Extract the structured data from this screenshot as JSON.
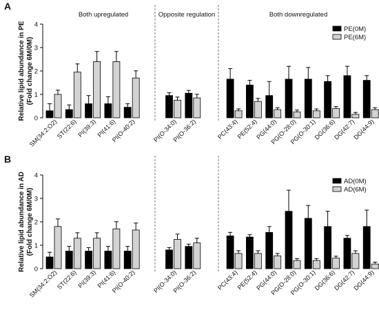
{
  "chart_data": [
    {
      "type": "bar",
      "panel_letter": "A",
      "ylabel_line1": "Relative lipid abundance in PE",
      "ylabel_line2": "(Fold change 6M/0M)",
      "ylim": [
        0,
        4
      ],
      "yticks": [
        "0",
        "1",
        "2",
        "3",
        "4"
      ],
      "group_labels": [
        "Both upregulated",
        "Opposite regulation",
        "Both downregulated"
      ],
      "categories": [
        "SM(34:2:O2)",
        "ST(22:6)",
        "PI(39:3)",
        "PI(41:6)",
        "PI(O-40:2)",
        "PI(O-34:0)",
        "PI(O-36:2)",
        "PC(43:4)",
        "PE(52:4)",
        "PG(44:0)",
        "PG(O-28:0)",
        "PG(O-30:1)",
        "DG(36:6)",
        "DG(42:7)",
        "DG(44:9)"
      ],
      "group_sizes": [
        5,
        2,
        8
      ],
      "legend_position": "top-right",
      "series": [
        {
          "name": "PE(0M)",
          "color": "#000000",
          "values": [
            0.3,
            0.35,
            0.6,
            0.6,
            0.45,
            0.95,
            1.05,
            1.65,
            1.4,
            0.95,
            1.65,
            1.65,
            1.55,
            1.8,
            1.6
          ],
          "errors": [
            0.3,
            0.2,
            0.35,
            0.3,
            0.15,
            0.12,
            0.12,
            0.45,
            0.2,
            0.6,
            0.55,
            0.5,
            0.25,
            0.4,
            0.2
          ]
        },
        {
          "name": "PE(6M)",
          "color": "#d3d3d3",
          "values": [
            1.0,
            1.95,
            2.4,
            2.4,
            1.7,
            0.75,
            0.85,
            0.3,
            0.7,
            0.35,
            0.25,
            0.3,
            0.4,
            0.15,
            0.35
          ]
        }
      ]
    },
    {
      "type": "bar",
      "panel_letter": "B",
      "ylabel_line1": "Relative lipid abundance in AD",
      "ylabel_line2": "(Fold change 6M/0M)",
      "ylim": [
        0,
        4
      ],
      "yticks": [
        "0",
        "1",
        "2",
        "3",
        "4"
      ],
      "categories": [
        "SM(34:2:O2)",
        "ST(22:6)",
        "PI(39:3)",
        "PI(41:6)",
        "PI(O-40:2)",
        "PI(O-34:0)",
        "PI(O-36:2)",
        "PC(43:4)",
        "PE(52:4)",
        "PG(44:0)",
        "PG(O-28:0)",
        "PG(O-30:1)",
        "DG(36:6)",
        "DG(42:7)",
        "DG(44:9)"
      ],
      "group_sizes": [
        5,
        2,
        8
      ],
      "legend_position": "top-right",
      "series": [
        {
          "name": "AD(0M)",
          "color": "#000000",
          "values": [
            0.5,
            0.75,
            0.75,
            0.75,
            0.75,
            0.8,
            0.95,
            1.4,
            1.35,
            1.55,
            2.45,
            2.15,
            1.8,
            1.3,
            1.8
          ],
          "errors": [
            0.2,
            0.2,
            0.15,
            0.2,
            0.2,
            0.1,
            0.1,
            0.15,
            0.1,
            0.25,
            0.9,
            0.55,
            0.65,
            0.12,
            0.7
          ]
        },
        {
          "name": "AD(6M)",
          "color": "#d3d3d3",
          "values": [
            1.8,
            1.3,
            1.3,
            1.7,
            1.65,
            1.25,
            1.1,
            0.65,
            0.65,
            0.55,
            0.35,
            0.35,
            0.45,
            0.65,
            0.2
          ]
        }
      ]
    }
  ]
}
